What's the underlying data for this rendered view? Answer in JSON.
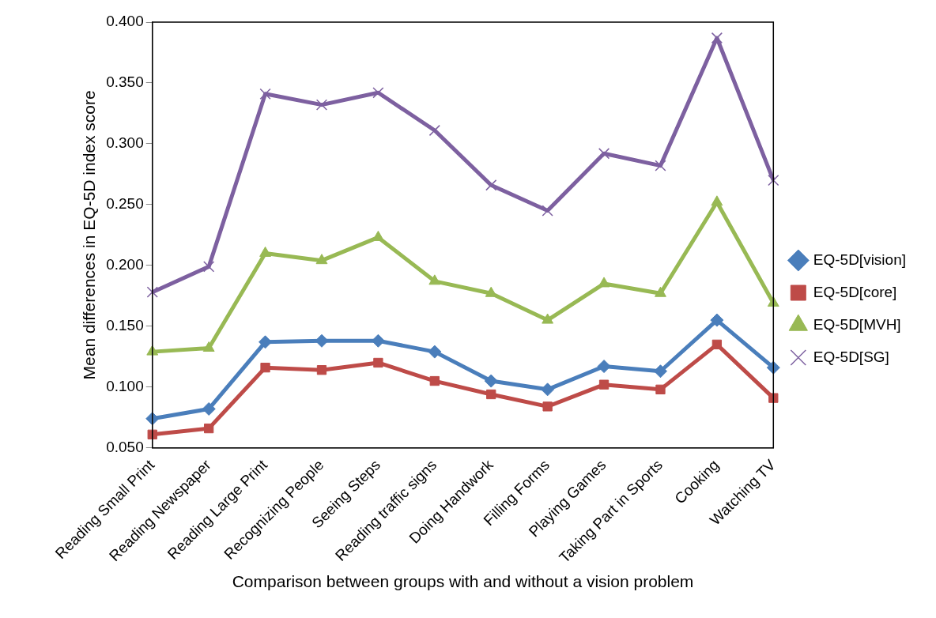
{
  "chart_data": {
    "type": "line",
    "xlabel": "Comparison between groups with and without a vision problem",
    "ylabel": "Mean differences in EQ-5D index score",
    "categories": [
      "Reading Small Print",
      "Reading Newspaper",
      "Reading Large Print",
      "Recognizing People",
      "Seeing Steps",
      "Reading traffic signs",
      "Doing Handwork",
      "Filling Forms",
      "Playing Games",
      "Taking Part in Sports",
      "Cooking",
      "Watching TV"
    ],
    "series": [
      {
        "name": "EQ-5D[vision]",
        "color": "#4a7ebb",
        "marker": "diamond",
        "values": [
          0.074,
          0.082,
          0.137,
          0.138,
          0.138,
          0.129,
          0.105,
          0.098,
          0.117,
          0.113,
          0.155,
          0.116
        ]
      },
      {
        "name": "EQ-5D[core]",
        "color": "#be4b48",
        "marker": "square",
        "values": [
          0.061,
          0.066,
          0.116,
          0.114,
          0.12,
          0.105,
          0.094,
          0.084,
          0.102,
          0.098,
          0.135,
          0.091
        ]
      },
      {
        "name": "EQ-5D[MVH]",
        "color": "#98b954",
        "marker": "triangle",
        "values": [
          0.129,
          0.132,
          0.21,
          0.204,
          0.223,
          0.187,
          0.177,
          0.155,
          0.185,
          0.177,
          0.252,
          0.169
        ]
      },
      {
        "name": "EQ-5D[SG]",
        "color": "#7d60a0",
        "marker": "cross",
        "values": [
          0.178,
          0.199,
          0.341,
          0.332,
          0.342,
          0.311,
          0.266,
          0.245,
          0.292,
          0.282,
          0.387,
          0.27
        ]
      }
    ],
    "ylim": [
      0.05,
      0.4
    ],
    "yticks": [
      {
        "value": 0.05,
        "label": "0.050"
      },
      {
        "value": 0.1,
        "label": "0.100"
      },
      {
        "value": 0.15,
        "label": "0.150"
      },
      {
        "value": 0.2,
        "label": "0.200"
      },
      {
        "value": 0.25,
        "label": "0.250"
      },
      {
        "value": 0.3,
        "label": "0.300"
      },
      {
        "value": 0.35,
        "label": "0.350"
      },
      {
        "value": 0.4,
        "label": "0.400"
      }
    ],
    "grid": false,
    "legend": "right",
    "line_style": "solid"
  }
}
